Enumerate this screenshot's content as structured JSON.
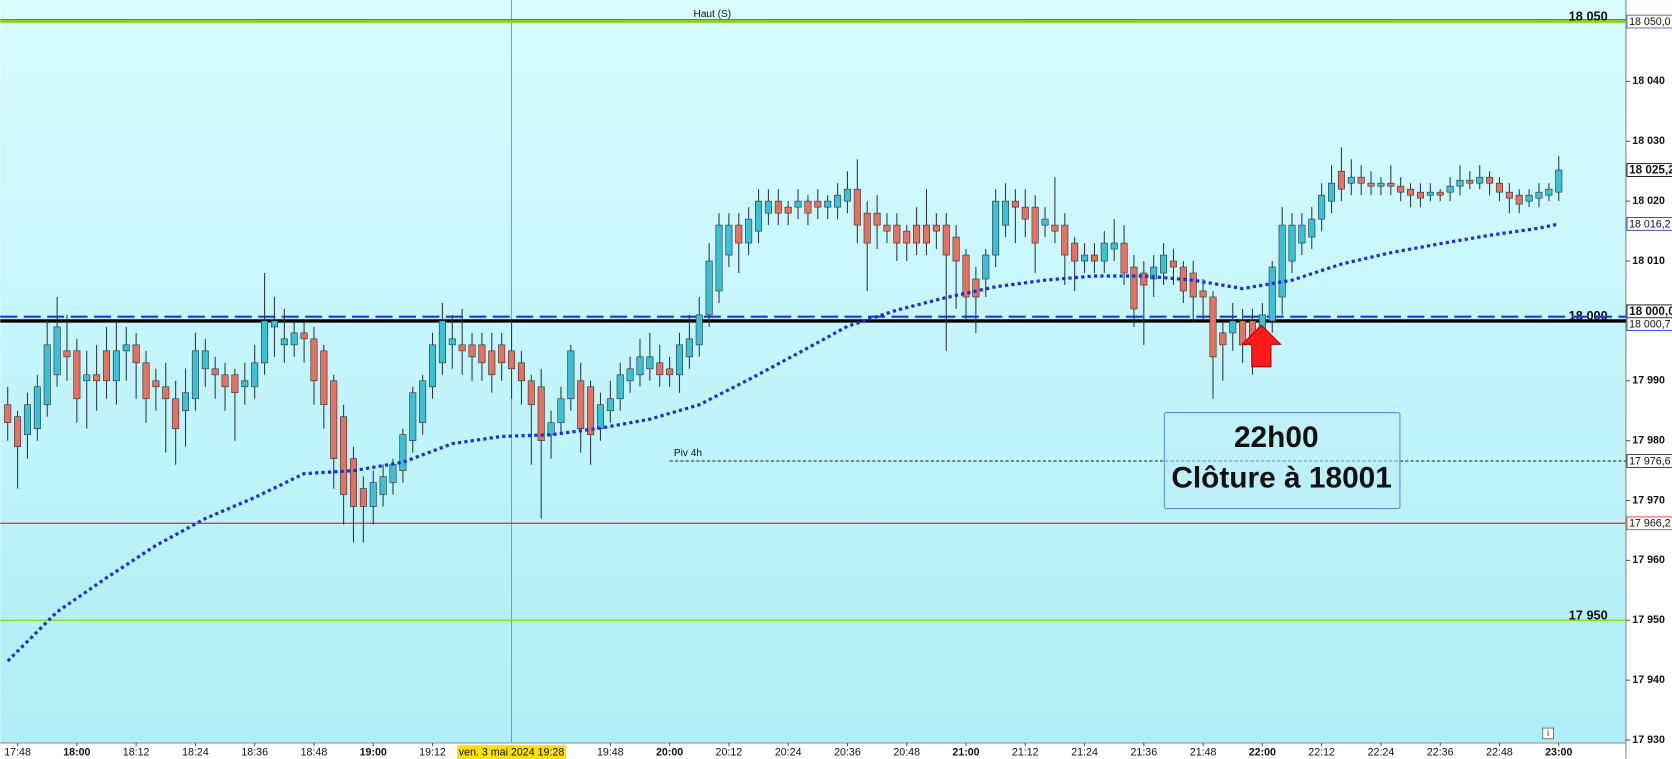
{
  "chart_data": {
    "type": "candlestick",
    "x": [
      "17:46",
      "17:48",
      "17:50",
      "17:52",
      "17:54",
      "17:56",
      "17:58",
      "18:00",
      "18:02",
      "18:04",
      "18:06",
      "18:08",
      "18:10",
      "18:12",
      "18:14",
      "18:16",
      "18:18",
      "18:20",
      "18:22",
      "18:24",
      "18:26",
      "18:28",
      "18:30",
      "18:32",
      "18:34",
      "18:36",
      "18:38",
      "18:40",
      "18:42",
      "18:44",
      "18:46",
      "18:48",
      "18:50",
      "18:52",
      "18:54",
      "18:56",
      "18:58",
      "19:00",
      "19:02",
      "19:04",
      "19:06",
      "19:08",
      "19:10",
      "19:12",
      "19:14",
      "19:16",
      "19:18",
      "19:20",
      "19:22",
      "19:24",
      "19:26",
      "19:28",
      "19:30",
      "19:32",
      "19:34",
      "19:36",
      "19:38",
      "19:40",
      "19:42",
      "19:44",
      "19:46",
      "19:48",
      "19:50",
      "19:52",
      "19:54",
      "19:56",
      "19:58",
      "20:00",
      "20:02",
      "20:04",
      "20:06",
      "20:08",
      "20:10",
      "20:12",
      "20:14",
      "20:16",
      "20:18",
      "20:20",
      "20:22",
      "20:24",
      "20:26",
      "20:28",
      "20:30",
      "20:32",
      "20:34",
      "20:36",
      "20:38",
      "20:40",
      "20:42",
      "20:44",
      "20:46",
      "20:48",
      "20:50",
      "20:52",
      "20:54",
      "20:56",
      "20:58",
      "21:00",
      "21:02",
      "21:04",
      "21:06",
      "21:08",
      "21:10",
      "21:12",
      "21:14",
      "21:16",
      "21:18",
      "21:20",
      "21:22",
      "21:24",
      "21:26",
      "21:28",
      "21:30",
      "21:32",
      "21:34",
      "21:36",
      "21:38",
      "21:40",
      "21:42",
      "21:44",
      "21:46",
      "21:48",
      "21:50",
      "21:52",
      "21:54",
      "21:56",
      "21:58",
      "22:00",
      "22:02",
      "22:04",
      "22:06",
      "22:08",
      "22:10",
      "22:12",
      "22:14",
      "22:16",
      "22:18",
      "22:20",
      "22:22",
      "22:24",
      "22:26",
      "22:28",
      "22:30",
      "22:32",
      "22:34",
      "22:36",
      "22:38",
      "22:40",
      "22:42",
      "22:44",
      "22:46",
      "22:48",
      "22:50",
      "22:52",
      "22:54",
      "22:56",
      "22:58",
      "23:00"
    ],
    "open": [
      17986,
      17984,
      17981,
      17982,
      17986,
      17991,
      17995,
      17995,
      17990,
      17991,
      17995,
      17990,
      17995,
      17996,
      17993,
      17990,
      17989,
      17987,
      17985,
      17987,
      17992,
      17992,
      17991,
      17991,
      17989,
      17989,
      17993,
      17999,
      17996,
      17996,
      17998,
      17997,
      17995,
      17990,
      17984,
      17977,
      17972,
      17969,
      17971,
      17973,
      17975,
      17980,
      17983,
      17989,
      17993,
      17996,
      17996,
      17996,
      17996,
      17995,
      17996,
      17995,
      17993,
      17990,
      17989,
      17981,
      17983,
      17987,
      17990,
      17989,
      17982,
      17985,
      17987,
      17990,
      17991,
      17992,
      17993,
      17992,
      17991,
      17994,
      17996,
      18001,
      18005,
      18011,
      18016,
      18013,
      18015,
      18018,
      18020,
      18019,
      18019,
      18020,
      18020,
      18019,
      18019,
      18020,
      18022,
      18018,
      18018,
      18016,
      18016,
      18015,
      18016,
      18016,
      18016,
      18016,
      18014,
      18011,
      18007,
      18007,
      18011,
      18016,
      18020,
      18019,
      18019,
      18016,
      18016,
      18016,
      18013,
      18010,
      18011,
      18010,
      18012,
      18013,
      18009,
      18008,
      18007,
      18008,
      18010,
      18009,
      18008,
      18005,
      18004,
      17998,
      17998,
      18000,
      18000,
      17998,
      18000,
      18004,
      18010,
      18013,
      18014,
      18017,
      18020,
      18025,
      18023,
      18024,
      18023,
      18022.5,
      18023,
      18022.5,
      18022,
      18021.5,
      18021,
      18021.5,
      18021.5,
      18022.5,
      18023.5,
      18023,
      18024,
      18023,
      18021.5,
      18021,
      18020,
      18020.5,
      18021,
      18021.5
    ],
    "high": [
      17989,
      17985,
      17988,
      17991,
      18000,
      18004,
      18001,
      17997,
      17995,
      17996,
      17999,
      18000,
      17999,
      17998,
      17995,
      17992,
      17993,
      17990,
      17992,
      17998,
      17997,
      17994,
      17993,
      17992,
      17993,
      17996,
      18008,
      18004,
      18002,
      18000,
      18000,
      17999,
      17996,
      17991,
      17986,
      17979,
      17974,
      17975,
      17976,
      17977,
      17982,
      17989,
      17991,
      17998,
      18003,
      18001,
      18002,
      17998,
      17998,
      17998,
      17998,
      18000,
      17995,
      17991,
      17992,
      17985,
      17989,
      17996,
      17993,
      17990,
      17988,
      17990,
      17993,
      17994,
      17997,
      17998,
      17996,
      17994,
      17998,
      18001,
      18004,
      18013,
      18018,
      18018,
      18018,
      18019,
      18022,
      18022,
      18022,
      18020,
      18022,
      18021,
      18022,
      18021,
      18023,
      18025,
      18027,
      18020,
      18021,
      18018,
      18018,
      18016,
      18019,
      18022,
      18018,
      18018,
      18016,
      18012,
      18009,
      18012,
      18022,
      18023,
      18022,
      18022,
      18021,
      18019,
      18024,
      18018,
      18014,
      18013,
      18013,
      18015,
      18017,
      18016,
      18011,
      18010,
      18011,
      18013,
      18012,
      18010,
      18010,
      18007,
      18005,
      18000,
      18003,
      18002,
      18002,
      18003,
      18010,
      18019,
      18018,
      18018,
      18019,
      18023,
      18026,
      18029,
      18027,
      18026,
      18025,
      18024,
      18026,
      18024,
      18023,
      18023,
      18023,
      18022,
      18024,
      18026,
      18025,
      18026,
      18025,
      18024,
      18023,
      18022,
      18022,
      18023,
      18023,
      18027.5
    ],
    "low": [
      17980,
      17972,
      17977,
      17980,
      17984,
      17989,
      17990,
      17983,
      17982,
      17985,
      17987,
      17986,
      17990,
      17987,
      17983,
      17985,
      17978,
      17976,
      17979,
      17985,
      17989,
      17987,
      17985,
      17980,
      17986,
      17987,
      17991,
      17994,
      17993,
      17994,
      17993,
      17986,
      17982,
      17972,
      17966,
      17963,
      17963,
      17966,
      17969,
      17971,
      17973,
      17978,
      17981,
      17987,
      17991,
      17992,
      17991,
      17990,
      17990,
      17988,
      17990,
      17987,
      17986,
      17976,
      17967,
      17977,
      17981,
      17985,
      17978,
      17976,
      17980,
      17983,
      17985,
      17988,
      17989,
      17990,
      17989,
      17989,
      17988,
      17992,
      17994,
      17999,
      18003,
      18009,
      18008,
      18011,
      18013,
      18016,
      18016,
      18016,
      18017,
      18016,
      18017,
      18017,
      18017,
      18018,
      18013,
      18005,
      18012,
      18013,
      18010,
      18010,
      18011,
      18011,
      18012,
      17995,
      18002,
      18000,
      17998,
      18004,
      18009,
      18014,
      18013,
      18014,
      18008,
      18014,
      18013,
      18006,
      18005,
      18008,
      18008,
      18008,
      18010,
      18006,
      17999,
      17996,
      18004,
      18006,
      18006,
      18003,
      18000,
      18000,
      17987,
      17990,
      17995,
      17993,
      17991,
      17995,
      17998,
      18001,
      18008,
      18011,
      18012,
      18015,
      18018,
      18020,
      18021,
      18021,
      18021,
      18021,
      18021,
      18020,
      18019,
      18019,
      18020,
      18020,
      18020,
      18021,
      18022,
      18022,
      18021,
      18020,
      18018,
      18018,
      18019,
      18019,
      18020,
      18020
    ],
    "close": [
      17983,
      17979,
      17986,
      17989,
      17996,
      17999,
      17994,
      17987,
      17991,
      17990,
      17990,
      17995,
      17996,
      17993,
      17987,
      17989,
      17987,
      17982,
      17988,
      17995,
      17995,
      17991,
      17989,
      17988,
      17990,
      17993,
      18000,
      18000,
      17997,
      17998,
      17997,
      17990,
      17986,
      17977,
      17971,
      17969,
      17969,
      17973,
      17974,
      17976,
      17981,
      17988,
      17990,
      17996,
      18000,
      17997,
      17995,
      17994,
      17993,
      17991,
      17993,
      17992,
      17990,
      17986,
      17980,
      17983,
      17987,
      17995,
      17982,
      17981,
      17986,
      17987,
      17991,
      17992,
      17994,
      17994,
      17991,
      17991,
      17996,
      17997,
      18001,
      18010,
      18016,
      18016,
      18013,
      18017,
      18020,
      18020,
      18018,
      18018,
      18020,
      18018,
      18019,
      18020,
      18021,
      18022,
      18016,
      18013,
      18016,
      18015,
      18013,
      18013,
      18013,
      18013,
      18015,
      18011,
      18010,
      18004,
      18004,
      18011,
      18020,
      18020,
      18019,
      18017,
      18013,
      18017,
      18015,
      18011,
      18010,
      18011,
      18010,
      18013,
      18013,
      18008,
      18002,
      18006,
      18009,
      18011,
      18009,
      18005,
      18004,
      18004,
      17994,
      17996,
      18000,
      17996,
      17996,
      18001,
      18009,
      18016,
      18016,
      18016,
      18017,
      18021,
      18023,
      18022,
      18024,
      18023,
      18022.5,
      18023,
      18022.5,
      18021.5,
      18021,
      18020.5,
      18021.5,
      18021,
      18022.5,
      18023.5,
      18023,
      18024,
      18023,
      18021.5,
      18020.5,
      18019.5,
      18021,
      18021.5,
      18022,
      18025.2
    ],
    "last_label": "18 025,2",
    "up_color": "#3fbfd4",
    "down_color": "#e8705e",
    "ylim": [
      17929.5,
      18053.6
    ],
    "yticks": [
      {
        "value": 17930,
        "label": "17 930"
      },
      {
        "value": 17940,
        "label": "17 940"
      },
      {
        "value": 17950,
        "label": "17 950"
      },
      {
        "value": 17960,
        "label": "17 960"
      },
      {
        "value": 17970,
        "label": "17 970"
      },
      {
        "value": 17980,
        "label": "17 980"
      },
      {
        "value": 17990,
        "label": "17 990"
      },
      {
        "value": 18000,
        "label": "18 000"
      },
      {
        "value": 18010,
        "label": "18 010"
      },
      {
        "value": 18020,
        "label": "18 020"
      },
      {
        "value": 18030,
        "label": "18 030"
      },
      {
        "value": 18040,
        "label": "18 040"
      }
    ],
    "xticks": [
      "17:48",
      "18:00",
      "18:12",
      "18:24",
      "18:36",
      "18:48",
      "19:00",
      "19:12",
      "19:48",
      "20:00",
      "20:12",
      "20:24",
      "20:36",
      "20:48",
      "21:00",
      "21:12",
      "21:24",
      "21:36",
      "21:48",
      "22:00",
      "22:12",
      "22:24",
      "22:36",
      "22:48",
      "23:00"
    ],
    "moving_average": {
      "color": "#1a2fd8",
      "x": [
        "17:46",
        "17:56",
        "18:06",
        "18:16",
        "18:26",
        "18:36",
        "18:46",
        "18:56",
        "19:06",
        "19:16",
        "19:26",
        "19:36",
        "19:46",
        "19:56",
        "20:06",
        "20:16",
        "20:26",
        "20:36",
        "20:46",
        "20:56",
        "21:06",
        "21:16",
        "21:26",
        "21:36",
        "21:46",
        "21:56",
        "22:06",
        "22:16",
        "22:26",
        "22:36",
        "22:46",
        "22:56",
        "23:00"
      ],
      "values": [
        17943.2,
        17951.4,
        17957.1,
        17962.5,
        17967,
        17970.5,
        17974.5,
        17975,
        17976.4,
        17979.5,
        17980.7,
        17981,
        17982.1,
        17983.6,
        17986,
        17990.2,
        17994.6,
        17999.1,
        18001.8,
        18003.9,
        18005.7,
        18006.8,
        18007.5,
        18007.5,
        18006.8,
        18005.4,
        18006.8,
        18009.5,
        18011.4,
        18012.9,
        18014.3,
        18015.5,
        18016.2
      ],
      "axis_label": "18 016,2"
    },
    "levels": [
      {
        "value": 18050,
        "color": "#8fd800",
        "style": "double",
        "label": "18 050",
        "axis_label": "18 050,0",
        "text": "Haut (S)"
      },
      {
        "value": 18000,
        "color": "#000000",
        "style": "thick",
        "label": "18 000",
        "axis_label": "18 000,0"
      },
      {
        "value": 18000.7,
        "color": "#1a3ad8",
        "style": "dashed",
        "axis_label": "18 000,7"
      },
      {
        "value": 17976.6,
        "color": "#222222",
        "style": "dotted",
        "axis_label": "17 976,6",
        "text": "Piv 4h",
        "from": "20:00"
      },
      {
        "value": 17966.2,
        "color": "#e83030",
        "style": "solid",
        "axis_label": "17 966,2"
      },
      {
        "value": 17950,
        "color": "#7ee000",
        "style": "solid",
        "label": "17 950"
      }
    ],
    "crosshair": {
      "x": "19:28",
      "label": "ven. 3 mai 2024 19:28",
      "color": "#e86060"
    },
    "annotation": [
      "22h00",
      "Clôture à 18001"
    ]
  }
}
